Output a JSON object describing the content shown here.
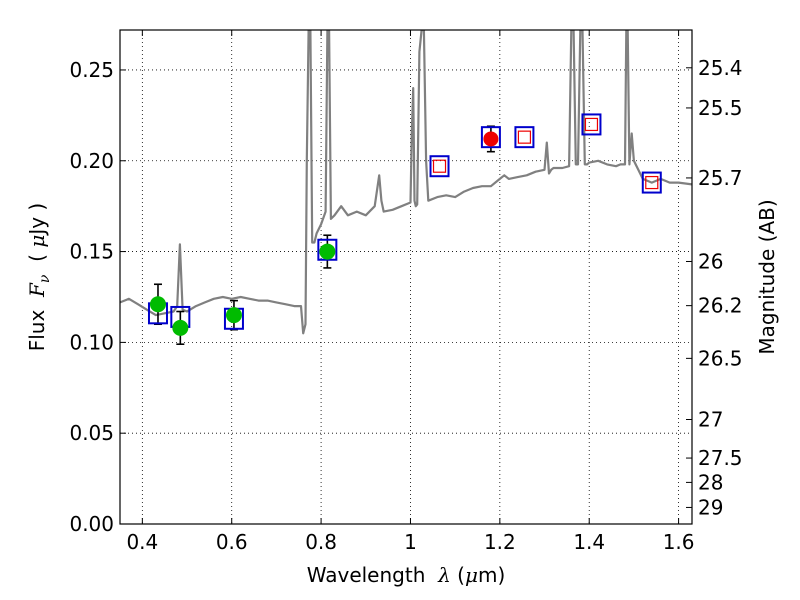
{
  "chart_data": {
    "type": "scatter",
    "xlabel": {
      "prefix": "Wavelength",
      "symbol": "λ",
      "units_open": " (",
      "units_mu": "μ",
      "units_rest": "m)"
    },
    "ylabel": {
      "prefix": "Flux",
      "symbol": "F",
      "subscript": "ν",
      "units_open": "( ",
      "units_mu": "μ",
      "units_rest": "Jy )"
    },
    "y2label": "Magnitude (AB)",
    "xlim": [
      0.35,
      1.63
    ],
    "ylim": [
      0.0,
      0.272
    ],
    "grid": true,
    "xticks": [
      {
        "value": 0.4,
        "label": "0.4"
      },
      {
        "value": 0.6,
        "label": "0.6"
      },
      {
        "value": 0.8,
        "label": "0.8"
      },
      {
        "value": 1.0,
        "label": "1"
      },
      {
        "value": 1.2,
        "label": "1.2"
      },
      {
        "value": 1.4,
        "label": "1.4"
      },
      {
        "value": 1.6,
        "label": "1.6"
      }
    ],
    "yticks": [
      {
        "value": 0.0,
        "label": "0.00"
      },
      {
        "value": 0.05,
        "label": "0.05"
      },
      {
        "value": 0.1,
        "label": "0.10"
      },
      {
        "value": 0.15,
        "label": "0.15"
      },
      {
        "value": 0.2,
        "label": "0.20"
      },
      {
        "value": 0.25,
        "label": "0.25"
      }
    ],
    "y2ticks": [
      {
        "mag": 25.4,
        "label": "25.4"
      },
      {
        "mag": 25.5,
        "label": "25.5"
      },
      {
        "mag": 25.7,
        "label": "25.7"
      },
      {
        "mag": 26.0,
        "label": "26"
      },
      {
        "mag": 26.2,
        "label": "26.2"
      },
      {
        "mag": 26.5,
        "label": "26.5"
      },
      {
        "mag": 27.0,
        "label": "27"
      },
      {
        "mag": 27.5,
        "label": "27.5"
      },
      {
        "mag": 28.0,
        "label": "28"
      },
      {
        "mag": 29.0,
        "label": "29"
      }
    ],
    "colors": {
      "model": "#808080",
      "observed": "#00bb00",
      "detection": "#ee0000",
      "model_box": "#0000cc",
      "model_inner": "#ee0000",
      "grid": "#000000",
      "errorbar": "#000000"
    },
    "model_spectrum": {
      "x": [
        0.35,
        0.37,
        0.39,
        0.41,
        0.43,
        0.45,
        0.47,
        0.478,
        0.484,
        0.49,
        0.5,
        0.52,
        0.54,
        0.56,
        0.58,
        0.6,
        0.62,
        0.64,
        0.66,
        0.68,
        0.7,
        0.72,
        0.74,
        0.755,
        0.76,
        0.765,
        0.768,
        0.772,
        0.776,
        0.78,
        0.785,
        0.79,
        0.8,
        0.81,
        0.814,
        0.818,
        0.822,
        0.83,
        0.845,
        0.86,
        0.88,
        0.9,
        0.92,
        0.93,
        0.935,
        0.94,
        0.96,
        0.98,
        1.0,
        1.003,
        1.006,
        1.009,
        1.012,
        1.015,
        1.02,
        1.025,
        1.03,
        1.035,
        1.04,
        1.06,
        1.08,
        1.1,
        1.12,
        1.14,
        1.16,
        1.18,
        1.2,
        1.21,
        1.22,
        1.24,
        1.26,
        1.28,
        1.3,
        1.305,
        1.31,
        1.315,
        1.32,
        1.34,
        1.355,
        1.36,
        1.365,
        1.37,
        1.375,
        1.38,
        1.385,
        1.39,
        1.395,
        1.4,
        1.42,
        1.44,
        1.46,
        1.47,
        1.48,
        1.483,
        1.486,
        1.49,
        1.495,
        1.5,
        1.52,
        1.54,
        1.56,
        1.58,
        1.6,
        1.63
      ],
      "y": [
        0.122,
        0.124,
        0.121,
        0.118,
        0.115,
        0.116,
        0.117,
        0.12,
        0.154,
        0.118,
        0.117,
        0.12,
        0.122,
        0.124,
        0.125,
        0.124,
        0.125,
        0.124,
        0.123,
        0.123,
        0.122,
        0.121,
        0.12,
        0.12,
        0.105,
        0.11,
        0.2,
        0.272,
        0.272,
        0.155,
        0.155,
        0.16,
        0.165,
        0.172,
        0.272,
        0.272,
        0.168,
        0.17,
        0.175,
        0.17,
        0.172,
        0.17,
        0.175,
        0.192,
        0.178,
        0.172,
        0.173,
        0.175,
        0.177,
        0.215,
        0.24,
        0.178,
        0.175,
        0.176,
        0.26,
        0.272,
        0.272,
        0.2,
        0.178,
        0.18,
        0.181,
        0.18,
        0.183,
        0.185,
        0.186,
        0.186,
        0.19,
        0.192,
        0.19,
        0.191,
        0.192,
        0.194,
        0.195,
        0.21,
        0.193,
        0.195,
        0.196,
        0.196,
        0.197,
        0.272,
        0.272,
        0.198,
        0.198,
        0.272,
        0.272,
        0.198,
        0.198,
        0.199,
        0.2,
        0.198,
        0.197,
        0.198,
        0.198,
        0.272,
        0.272,
        0.198,
        0.215,
        0.2,
        0.19,
        0.188,
        0.19,
        0.188,
        0.188,
        0.187
      ]
    },
    "observed_points": [
      {
        "x": 0.435,
        "y": 0.121,
        "yerr_low": 0.011,
        "yerr_high": 0.011
      },
      {
        "x": 0.485,
        "y": 0.108,
        "yerr_low": 0.009,
        "yerr_high": 0.009
      },
      {
        "x": 0.605,
        "y": 0.115,
        "yerr_low": 0.008,
        "yerr_high": 0.008
      },
      {
        "x": 0.814,
        "y": 0.15,
        "yerr_low": 0.009,
        "yerr_high": 0.009
      }
    ],
    "detection_points": [
      {
        "x": 1.18,
        "y": 0.212,
        "yerr_low": 0.007,
        "yerr_high": 0.007
      }
    ],
    "model_photometry": [
      {
        "x": 0.435,
        "y": 0.116,
        "style": "open"
      },
      {
        "x": 0.485,
        "y": 0.114,
        "style": "open"
      },
      {
        "x": 0.605,
        "y": 0.113,
        "style": "open"
      },
      {
        "x": 0.814,
        "y": 0.151,
        "style": "open"
      },
      {
        "x": 1.065,
        "y": 0.197,
        "style": "inner"
      },
      {
        "x": 1.18,
        "y": 0.213,
        "style": "open"
      },
      {
        "x": 1.255,
        "y": 0.213,
        "style": "inner"
      },
      {
        "x": 1.405,
        "y": 0.22,
        "style": "inner"
      },
      {
        "x": 1.54,
        "y": 0.188,
        "style": "inner"
      }
    ]
  }
}
